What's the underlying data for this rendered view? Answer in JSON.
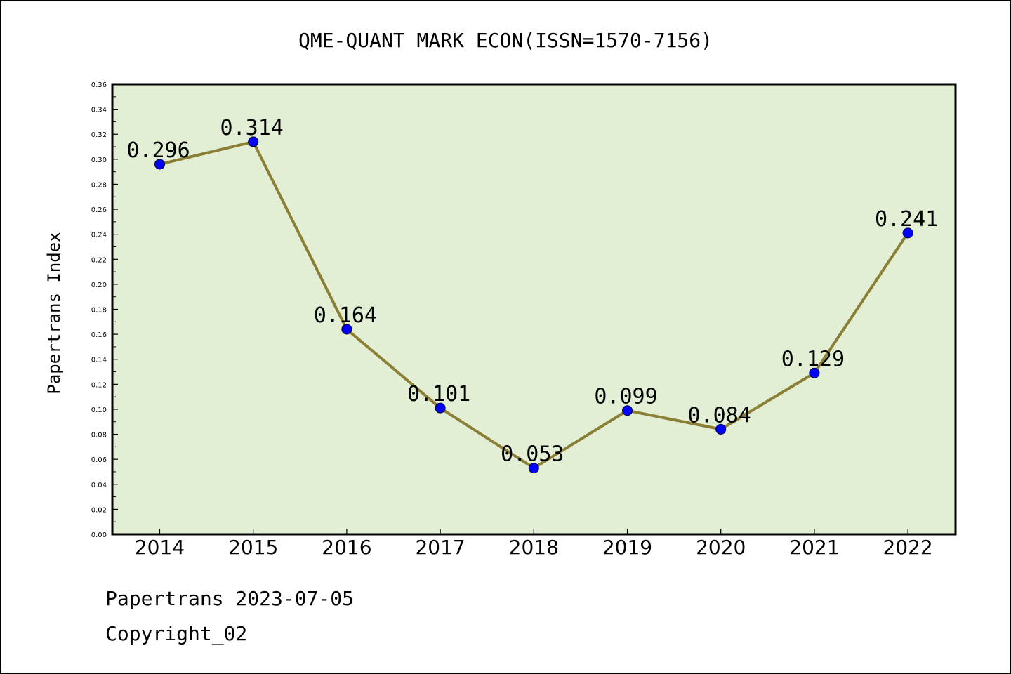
{
  "chart_data": {
    "type": "line",
    "title": "QME-QUANT MARK ECON(ISSN=1570-7156)",
    "xlabel": "",
    "ylabel": "Papertrans Index",
    "categories": [
      "2014",
      "2015",
      "2016",
      "2017",
      "2018",
      "2019",
      "2020",
      "2021",
      "2022"
    ],
    "series": [
      {
        "values": [
          0.296,
          0.314,
          0.164,
          0.101,
          0.053,
          0.099,
          0.084,
          0.129,
          0.241
        ]
      }
    ],
    "data_labels": [
      "0.296",
      "0.314",
      "0.164",
      "0.101",
      "0.053",
      "0.099",
      "0.084",
      "0.129",
      "0.241"
    ],
    "ylim": [
      0,
      0.36
    ],
    "y_ticks": [
      "0.00",
      "0.02",
      "0.04",
      "0.06",
      "0.08",
      "0.10",
      "0.12",
      "0.14",
      "0.16",
      "0.18",
      "0.20",
      "0.22",
      "0.24",
      "0.26",
      "0.28",
      "0.30",
      "0.32",
      "0.34",
      "0.36"
    ],
    "grid": false,
    "colors": {
      "plot_background": "#e2efd5",
      "line": "#8b7f35",
      "marker": "#0000ff"
    }
  },
  "footer": {
    "date_text": "Papertrans 2023-07-05",
    "copyright_text": "Copyright_02"
  }
}
